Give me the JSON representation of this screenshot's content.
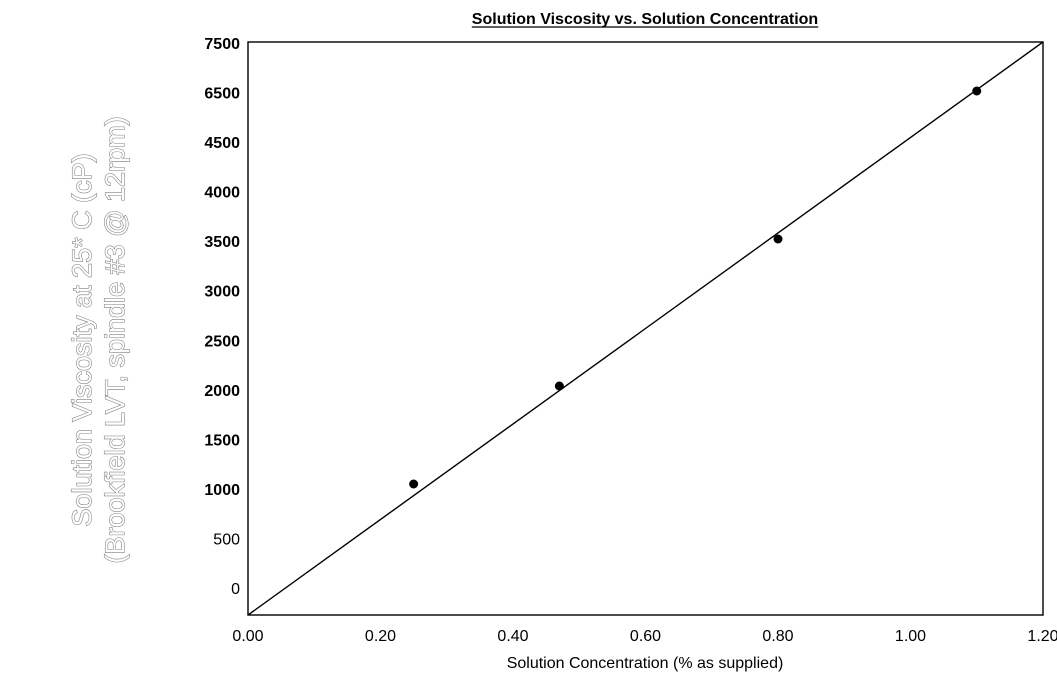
{
  "chart_data": {
    "type": "scatter",
    "title": "Solution Viscosity vs. Solution Concentration",
    "xlabel": "Solution Concentration (% as supplied)",
    "ylabel_line1": "Solution Viscosity at 25* C (cP)",
    "ylabel_line2": "(Brookfield LVT, spindle #3 @ 12rpm)",
    "x_ticks": [
      "0.00",
      "0.20",
      "0.40",
      "0.60",
      "0.80",
      "1.00",
      "1.20"
    ],
    "y_ticks": [
      "0",
      "500",
      "1000",
      "1500",
      "2000",
      "2500",
      "3000",
      "3500",
      "4000",
      "4500",
      "6500",
      "7500"
    ],
    "y_ticks_bold": [
      false,
      false,
      true,
      true,
      true,
      true,
      true,
      true,
      true,
      true,
      true,
      true
    ],
    "xlim": [
      0.0,
      1.2
    ],
    "ylim": [
      0,
      7500
    ],
    "grid": false,
    "series": [
      {
        "x": [
          0.25,
          0.47,
          0.8,
          1.1
        ],
        "y": [
          1000,
          2000,
          3500,
          6500
        ],
        "marker": "circle",
        "color": "#000000"
      }
    ],
    "trendline": {
      "type": "linear",
      "color": "#000000"
    }
  }
}
